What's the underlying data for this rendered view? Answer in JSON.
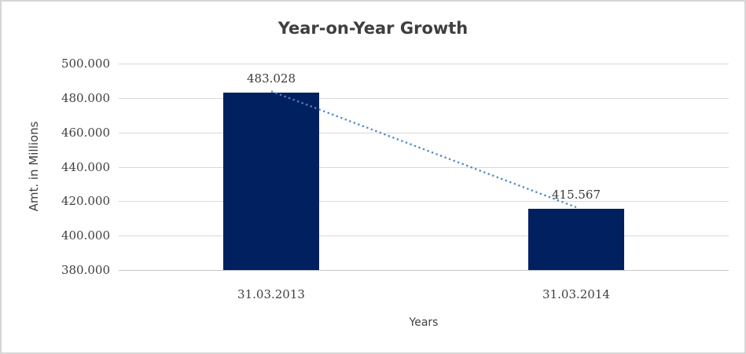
{
  "window": {
    "background": "#ffffff",
    "border_color": "#d5d5d5"
  },
  "chart_data": {
    "type": "bar",
    "title": "Year-on-Year Growth",
    "xlabel": "Years",
    "ylabel": "Amt. in Millions",
    "categories": [
      "31.03.2013",
      "31.03.2014"
    ],
    "values": [
      483.028,
      415.567
    ],
    "value_labels": [
      "483.028",
      "415.567"
    ],
    "ylim": [
      380,
      500
    ],
    "yticks": [
      {
        "value": 380,
        "label": "380.000"
      },
      {
        "value": 400,
        "label": "400.000"
      },
      {
        "value": 420,
        "label": "420.000"
      },
      {
        "value": 440,
        "label": "440.000"
      },
      {
        "value": 460,
        "label": "460.000"
      },
      {
        "value": 480,
        "label": "480.000"
      },
      {
        "value": 500,
        "label": "500.000"
      }
    ],
    "grid": true,
    "legend": false,
    "trendline": {
      "style": "dotted",
      "color": "#4e87c7",
      "from_value": 483.028,
      "to_value": 415.567
    },
    "colors": {
      "bar": "#012060",
      "gridline": "#d9d9d9",
      "text": "#3f3f3f",
      "title": "#3f3f3f"
    }
  }
}
